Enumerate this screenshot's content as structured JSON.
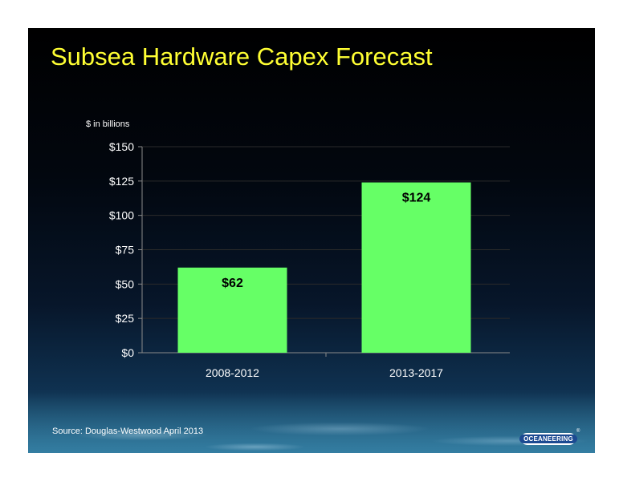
{
  "slide": {
    "title": "Subsea Hardware Capex Forecast",
    "unit_label": "$ in billions",
    "source": "Source:  Douglas-Westwood April 2013",
    "logo_text": "OCEANEERING",
    "logo_mark": "®"
  },
  "chart_data": {
    "type": "bar",
    "categories": [
      "2008-2012",
      "2013-2017"
    ],
    "values": [
      62,
      124
    ],
    "data_labels": [
      "$62",
      "$124"
    ],
    "ylim": [
      0,
      150
    ],
    "yticks": [
      0,
      25,
      50,
      75,
      100,
      125,
      150
    ],
    "ytick_labels": [
      "$0",
      "$25",
      "$50",
      "$75",
      "$100",
      "$125",
      "$150"
    ],
    "grid": true,
    "legend": "none",
    "bar_color": "#66ff66",
    "title_color": "#ffff33"
  }
}
